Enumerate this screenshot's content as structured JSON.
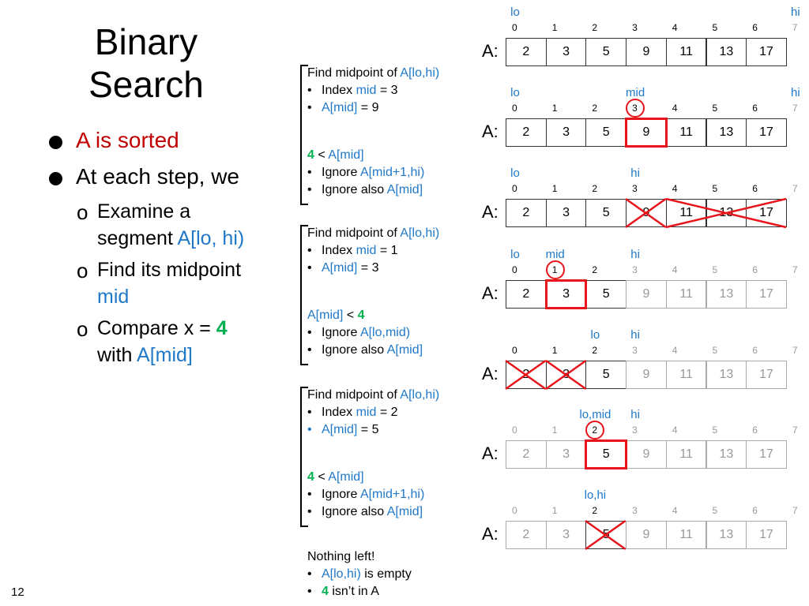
{
  "title": "Binary Search",
  "bullets": [
    {
      "segments": [
        {
          "t": "A is sorted",
          "c": "red"
        }
      ]
    },
    {
      "segments": [
        {
          "t": "At each step, we",
          "c": "k"
        }
      ]
    }
  ],
  "sub_bullets": [
    {
      "lines": [
        [
          {
            "t": "Examine a",
            "c": "k"
          }
        ],
        [
          {
            "t": "segment ",
            "c": "k"
          },
          {
            "t": "A[lo, hi)",
            "c": "blue"
          }
        ]
      ]
    },
    {
      "lines": [
        [
          {
            "t": "Find its midpoint",
            "c": "k"
          }
        ],
        [
          {
            "t": "mid",
            "c": "blue"
          }
        ]
      ]
    },
    {
      "lines": [
        [
          {
            "t": "Compare x = ",
            "c": "k"
          },
          {
            "t": "4",
            "c": "green"
          }
        ],
        [
          {
            "t": "with ",
            "c": "k"
          },
          {
            "t": "A[mid]",
            "c": "blue"
          }
        ]
      ]
    }
  ],
  "sub_bullet_marker": "o",
  "page_number": "12",
  "steps": [
    {
      "lines": [
        {
          "bullet": false,
          "segments": [
            {
              "t": "Find midpoint of ",
              "c": "k"
            },
            {
              "t": "A[lo,hi)",
              "c": "blue"
            }
          ]
        },
        {
          "bullet": true,
          "segments": [
            {
              "t": "Index ",
              "c": "k"
            },
            {
              "t": "mid",
              "c": "blue"
            },
            {
              "t": " = 3",
              "c": "k"
            }
          ]
        },
        {
          "bullet": true,
          "segments": [
            {
              "t": "A[mid]",
              "c": "blue"
            },
            {
              "t": " = 9",
              "c": "k"
            }
          ]
        },
        {
          "bullet": false,
          "gap": true,
          "segments": [
            {
              "t": "4",
              "c": "green"
            },
            {
              "t": " < ",
              "c": "k"
            },
            {
              "t": "A[mid]",
              "c": "blue"
            }
          ]
        },
        {
          "bullet": true,
          "segments": [
            {
              "t": "Ignore ",
              "c": "k"
            },
            {
              "t": "A[mid+1,hi)",
              "c": "blue"
            }
          ]
        },
        {
          "bullet": true,
          "segments": [
            {
              "t": "Ignore also ",
              "c": "k"
            },
            {
              "t": "A[mid]",
              "c": "blue"
            }
          ]
        }
      ]
    },
    {
      "lines": [
        {
          "bullet": false,
          "segments": [
            {
              "t": "Find midpoint of ",
              "c": "k"
            },
            {
              "t": "A[lo,hi)",
              "c": "blue"
            }
          ]
        },
        {
          "bullet": true,
          "segments": [
            {
              "t": "Index ",
              "c": "k"
            },
            {
              "t": "mid",
              "c": "blue"
            },
            {
              "t": " = 1",
              "c": "k"
            }
          ]
        },
        {
          "bullet": true,
          "segments": [
            {
              "t": "A[mid]",
              "c": "blue"
            },
            {
              "t": " = 3",
              "c": "k"
            }
          ]
        },
        {
          "bullet": false,
          "gap": true,
          "segments": [
            {
              "t": "A[mid]",
              "c": "blue"
            },
            {
              "t": " < ",
              "c": "k"
            },
            {
              "t": "4",
              "c": "green"
            }
          ]
        },
        {
          "bullet": true,
          "segments": [
            {
              "t": "Ignore ",
              "c": "k"
            },
            {
              "t": "A[lo,mid)",
              "c": "blue"
            }
          ]
        },
        {
          "bullet": true,
          "segments": [
            {
              "t": "Ignore also ",
              "c": "k"
            },
            {
              "t": "A[mid]",
              "c": "blue"
            }
          ]
        }
      ]
    },
    {
      "lines": [
        {
          "bullet": false,
          "segments": [
            {
              "t": "Find midpoint of ",
              "c": "k"
            },
            {
              "t": "A[lo,hi)",
              "c": "blue"
            }
          ]
        },
        {
          "bullet": true,
          "segments": [
            {
              "t": "Index ",
              "c": "k"
            },
            {
              "t": "mid",
              "c": "blue"
            },
            {
              "t": " = 2",
              "c": "k"
            }
          ]
        },
        {
          "bullet": true,
          "bullet_color": "blue",
          "segments": [
            {
              "t": "A[mid]",
              "c": "blue"
            },
            {
              "t": " = 5",
              "c": "k"
            }
          ]
        },
        {
          "bullet": false,
          "gap": true,
          "segments": [
            {
              "t": "4",
              "c": "green"
            },
            {
              "t": " < ",
              "c": "k"
            },
            {
              "t": "A[mid]",
              "c": "blue"
            }
          ]
        },
        {
          "bullet": true,
          "segments": [
            {
              "t": "Ignore ",
              "c": "k"
            },
            {
              "t": "A[mid+1,hi)",
              "c": "blue"
            }
          ]
        },
        {
          "bullet": true,
          "segments": [
            {
              "t": "Ignore also ",
              "c": "k"
            },
            {
              "t": "A[mid]",
              "c": "blue"
            }
          ]
        }
      ]
    }
  ],
  "conclusion": {
    "lines": [
      {
        "bullet": false,
        "segments": [
          {
            "t": "Nothing left!",
            "c": "k"
          }
        ]
      },
      {
        "bullet": true,
        "segments": [
          {
            "t": "A[lo,hi)",
            "c": "blue"
          },
          {
            "t": " is empty",
            "c": "k"
          }
        ]
      },
      {
        "bullet": true,
        "segments": [
          {
            "t": "4",
            "c": "green"
          },
          {
            "t": " isn’t in A",
            "c": "k"
          }
        ]
      }
    ]
  },
  "bullet_char": "•",
  "array": {
    "label": "A:",
    "values": [
      "2",
      "3",
      "5",
      "9",
      "11",
      "13",
      "17"
    ],
    "indices": [
      "0",
      "1",
      "2",
      "3",
      "4",
      "5",
      "6",
      "7"
    ]
  },
  "array_states": [
    {
      "pointers": [
        {
          "label": "lo",
          "index": 0
        },
        {
          "label": "hi",
          "index": 7
        }
      ],
      "active": [
        0,
        7
      ]
    },
    {
      "pointers": [
        {
          "label": "lo",
          "index": 0
        },
        {
          "label": "mid",
          "index": 3
        },
        {
          "label": "hi",
          "index": 7
        }
      ],
      "active": [
        0,
        7
      ],
      "circle": 3,
      "box": 3
    },
    {
      "pointers": [
        {
          "label": "lo",
          "index": 0
        },
        {
          "label": "hi",
          "index": 3
        }
      ],
      "active": [
        0,
        7
      ],
      "crosses": [
        [
          3,
          4
        ],
        [
          4,
          7
        ]
      ]
    },
    {
      "pointers": [
        {
          "label": "lo",
          "index": 0
        },
        {
          "label": "mid",
          "index": 1
        },
        {
          "label": "hi",
          "index": 3
        }
      ],
      "active": [
        0,
        3
      ],
      "circle": 1,
      "box": 1
    },
    {
      "pointers": [
        {
          "label": "lo",
          "index": 2
        },
        {
          "label": "hi",
          "index": 3
        }
      ],
      "active": [
        0,
        3
      ],
      "crosses": [
        [
          0,
          1
        ],
        [
          1,
          2
        ]
      ]
    },
    {
      "pointers": [
        {
          "label": "lo,mid",
          "index": 2
        },
        {
          "label": "hi",
          "index": 3
        }
      ],
      "active": [
        2,
        3
      ],
      "circle": 2,
      "box": 2
    },
    {
      "pointers": [
        {
          "label": "lo,hi",
          "index": 2
        }
      ],
      "active": [
        2,
        3
      ],
      "crosses": [
        [
          2,
          3
        ]
      ]
    }
  ],
  "colors": {
    "red": "#C00000",
    "blue": "#1F78C8",
    "green": "#00B050",
    "highlight": "#E8141B",
    "inactive": "#999999"
  }
}
